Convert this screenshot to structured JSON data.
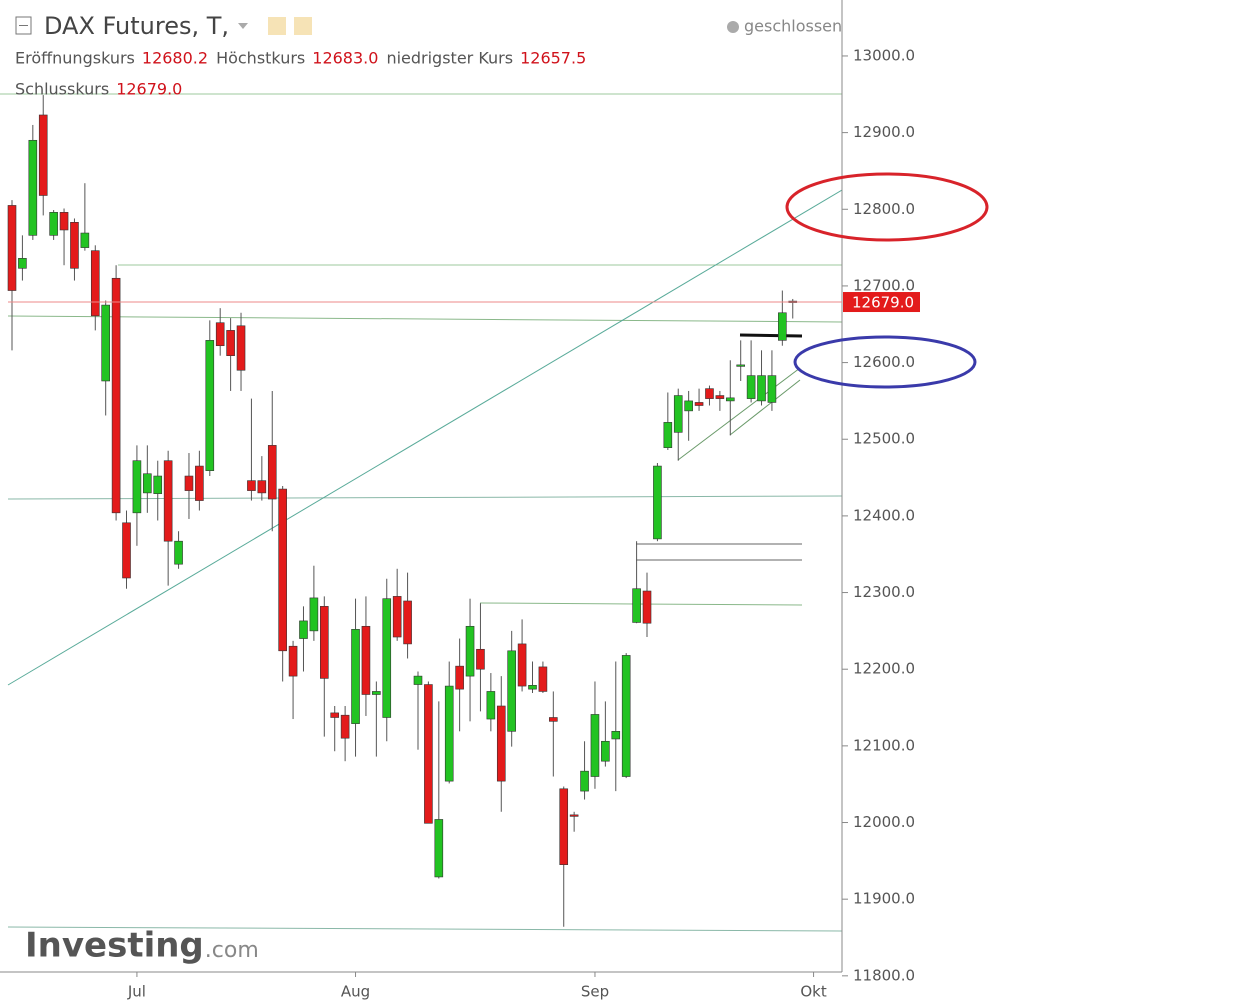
{
  "chart_data": {
    "type": "candlestick",
    "title": "DAX Futures, T,",
    "status": "geschlossen",
    "legend": [
      {
        "name": "Eröffnungskurs",
        "value": 12680.2
      },
      {
        "name": "Höchstkurs",
        "value": 12683.0,
        "label": "12683.0"
      },
      {
        "name": "niedrigster Kurs",
        "value": 12657.5
      },
      {
        "name": "Schlusskurs",
        "value": 12679,
        "label": "12679.0"
      }
    ],
    "last_price": {
      "value": 12679,
      "label": "12679.0"
    },
    "watermark": {
      "brand": "Investing",
      "suffix": ".com"
    },
    "up_color": "#22c322",
    "down_color": "#e31b1b",
    "categories": [
      null,
      null,
      null,
      null,
      null,
      null,
      null,
      null,
      null,
      null,
      null,
      null,
      "Jul",
      null,
      null,
      null,
      null,
      null,
      null,
      null,
      null,
      null,
      null,
      null,
      null,
      null,
      null,
      null,
      null,
      null,
      null,
      null,
      null,
      "Aug",
      null,
      null,
      null,
      null,
      null,
      null,
      null,
      null,
      null,
      null,
      null,
      null,
      null,
      null,
      null,
      null,
      null,
      null,
      null,
      null,
      null,
      null,
      "Sep",
      null,
      null,
      null,
      null,
      null,
      null,
      null,
      null,
      null,
      null,
      null,
      null,
      null,
      null,
      null,
      null,
      null,
      null,
      null,
      null,
      "Okt"
    ],
    "open": [
      12805,
      12723,
      12766,
      12923,
      12766,
      12796,
      12783,
      12750,
      12746,
      12576,
      12710,
      12391,
      12404,
      12430,
      12429,
      12472,
      12337,
      12452,
      12465,
      12459,
      12652,
      12642,
      12648,
      12446,
      12446,
      12492,
      12435,
      12230,
      12240,
      12250,
      12282,
      12143,
      12140,
      12129,
      12256,
      12167,
      12137,
      12295,
      12289,
      12180,
      12180,
      11929,
      12054,
      12204,
      12191,
      12226,
      12135,
      12152,
      12119,
      12233,
      12174,
      12203,
      12137,
      12044,
      12010,
      12041,
      12060,
      12080,
      12109,
      12060,
      12261,
      12302,
      12370,
      12489,
      12509,
      12537,
      12548,
      12566,
      12557,
      12550,
      12596,
      12553,
      12550,
      12548,
      12629,
      12680.2,
      null,
      null
    ],
    "high": [
      12812,
      12766,
      12910,
      12949,
      12799,
      12801,
      12788,
      12834,
      12753,
      12681,
      12727,
      12407,
      12492,
      12492,
      12472,
      12485,
      12380,
      12482,
      12485,
      12655,
      12671,
      12658,
      12665,
      12553,
      12478,
      12563,
      12439,
      12237,
      12282,
      12335,
      12295,
      12152,
      12152,
      12292,
      12295,
      12184,
      12318,
      12331,
      12326,
      12197,
      12184,
      12158,
      12210,
      12240,
      12292,
      12286,
      12195,
      12191,
      12250,
      12265,
      12210,
      12210,
      12171,
      12047,
      12014,
      12106,
      12184,
      12158,
      12210,
      12221,
      12367,
      12326,
      12469,
      12561,
      12566,
      12563,
      12566,
      12570,
      12563,
      12603,
      12629,
      12629,
      12616,
      12616,
      12694,
      12683,
      null,
      null
    ],
    "low": [
      12616,
      12707,
      12760,
      12792,
      12760,
      12727,
      12707,
      12746,
      12642,
      12531,
      12394,
      12305,
      12361,
      12404,
      12394,
      12309,
      12331,
      12396,
      12407,
      12452,
      12609,
      12563,
      12563,
      12420,
      12420,
      12380,
      12184,
      12135,
      12197,
      12237,
      12112,
      12093,
      12080,
      12086,
      12139,
      12086,
      12106,
      12237,
      12214,
      12095,
      11999,
      11927,
      12051,
      12119,
      12132,
      12145,
      12119,
      12014,
      12099,
      12171,
      12169,
      12169,
      12060,
      11864,
      11988,
      12030,
      12044,
      12073,
      12041,
      12058,
      12260,
      12242,
      12367,
      12486,
      12472,
      12498,
      12537,
      12544,
      12537,
      12505,
      12576,
      12548,
      12544,
      12537,
      12622,
      12657.5,
      null,
      null
    ],
    "close": [
      12694,
      12736,
      12890,
      12818,
      12796,
      12773,
      12723,
      12769,
      12661,
      12675,
      12404,
      12319,
      12472,
      12455,
      12452,
      12367,
      12367,
      12433,
      12420,
      12629,
      12622,
      12609,
      12590,
      12433,
      12430,
      12422,
      12224,
      12191,
      12263,
      12293,
      12188,
      12137,
      12110,
      12252,
      12167,
      12171,
      12292,
      12242,
      12233,
      12191,
      11999,
      12004,
      12178,
      12174,
      12256,
      12200,
      12171,
      12054,
      12224,
      12178,
      12179,
      12171,
      12132,
      11945,
      12008,
      12067,
      12141,
      12106,
      12119,
      12218,
      12305,
      12260,
      12465,
      12522,
      12557,
      12550,
      12544,
      12553,
      12553,
      12554,
      12597,
      12583,
      12583,
      12583,
      12665,
      12679,
      null,
      null
    ],
    "ylim": [
      11805,
      13073
    ],
    "yticks": [
      {
        "value": 11800,
        "label": "11800.0"
      },
      {
        "value": 11900,
        "label": "11900.0"
      },
      {
        "value": 12000,
        "label": "12000.0"
      },
      {
        "value": 12100,
        "label": "12100.0"
      },
      {
        "value": 12200,
        "label": "12200.0"
      },
      {
        "value": 12300,
        "label": "12300.0"
      },
      {
        "value": 12400,
        "label": "12400.0"
      },
      {
        "value": 12500,
        "label": "12500.0"
      },
      {
        "value": 12600,
        "label": "12600.0"
      },
      {
        "value": 12700,
        "label": "12700.0"
      },
      {
        "value": 12800,
        "label": "12800.0"
      },
      {
        "value": 12900,
        "label": "12900.0"
      },
      {
        "value": 13000,
        "label": "13000.0"
      }
    ]
  }
}
